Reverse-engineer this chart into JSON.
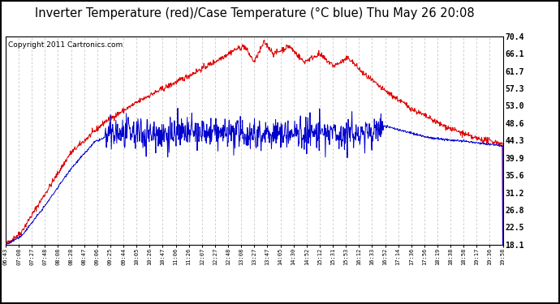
{
  "title": "Inverter Temperature (red)/Case Temperature (°C blue) Thu May 26 20:08",
  "copyright": "Copyright 2011 Cartronics.com",
  "y_ticks": [
    18.1,
    22.5,
    26.8,
    31.2,
    35.6,
    39.9,
    44.3,
    48.6,
    53.0,
    57.3,
    61.7,
    66.1,
    70.4
  ],
  "ylim": [
    18.1,
    70.4
  ],
  "x_labels": [
    "06:43",
    "07:08",
    "07:27",
    "07:48",
    "08:08",
    "08:28",
    "08:47",
    "09:06",
    "09:25",
    "09:44",
    "10:05",
    "10:26",
    "10:47",
    "11:06",
    "11:26",
    "12:07",
    "12:27",
    "12:48",
    "13:08",
    "13:27",
    "13:47",
    "14:05",
    "14:30",
    "14:52",
    "15:12",
    "15:31",
    "15:53",
    "16:12",
    "16:33",
    "16:52",
    "17:14",
    "17:36",
    "17:56",
    "18:19",
    "18:38",
    "18:58",
    "19:17",
    "19:36",
    "19:58"
  ],
  "bg_color": "#ffffff",
  "grid_color": "#bbbbbb",
  "red_line_color": "#dd0000",
  "blue_line_color": "#0000cc",
  "title_fontsize": 10.5,
  "copyright_fontsize": 6.5
}
